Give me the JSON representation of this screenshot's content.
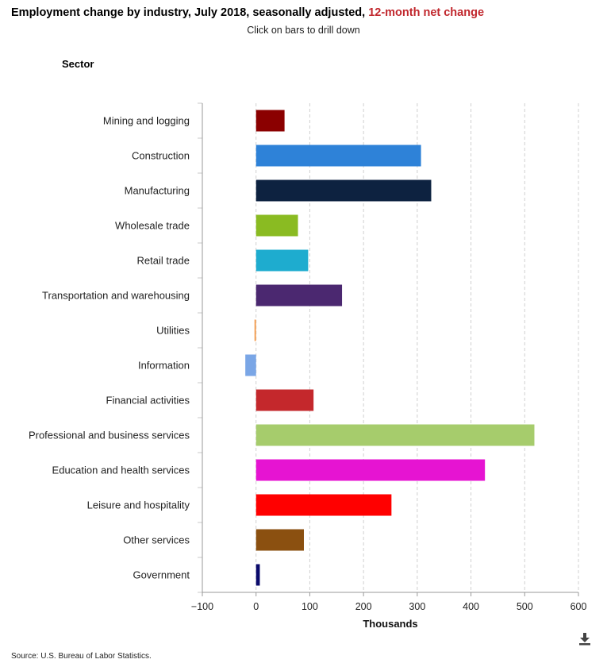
{
  "header": {
    "title_main": "Employment change by industry, July 2018, seasonally adjusted, ",
    "title_accent": "12-month net change",
    "subtitle": "Click on bars to drill down",
    "y_axis_heading": "Sector"
  },
  "footer": {
    "source": "Source: U.S. Bureau of Labor Statistics."
  },
  "download": {
    "icon": "download-icon"
  },
  "chart_data": {
    "type": "bar",
    "orientation": "horizontal",
    "title": "Employment change by industry, July 2018, seasonally adjusted, 12-month net change",
    "xlabel": "Thousands",
    "ylabel": "Sector",
    "xlim": [
      -100,
      600
    ],
    "xticks": [
      -100,
      0,
      100,
      200,
      300,
      400,
      500,
      600
    ],
    "xtick_labels": [
      "−100",
      "0",
      "100",
      "200",
      "300",
      "400",
      "500",
      "600"
    ],
    "grid": "vertical dashed",
    "categories": [
      "Mining and logging",
      "Construction",
      "Manufacturing",
      "Wholesale trade",
      "Retail trade",
      "Transportation and warehousing",
      "Utilities",
      "Information",
      "Financial activities",
      "Professional and business services",
      "Education and health services",
      "Leisure and hospitality",
      "Other services",
      "Government"
    ],
    "values": [
      53,
      307,
      326,
      78,
      97,
      160,
      -3,
      -20,
      107,
      518,
      426,
      252,
      89,
      7
    ],
    "colors": [
      "#8b0000",
      "#2e82d8",
      "#0d2240",
      "#8abb22",
      "#1eaccf",
      "#4b2870",
      "#f4a259",
      "#7aa6e6",
      "#c4282c",
      "#a6cc6c",
      "#e614d2",
      "#ff0000",
      "#8b5010",
      "#0a0a6b"
    ]
  }
}
